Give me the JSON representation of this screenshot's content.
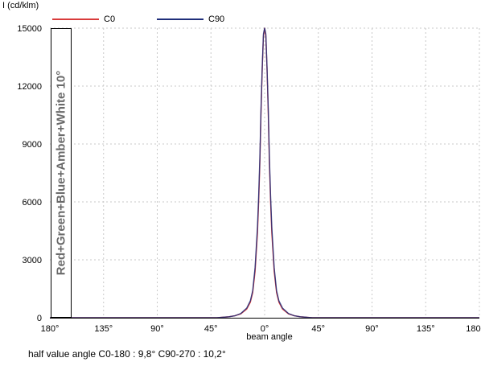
{
  "chart_data": {
    "type": "line",
    "ylabel": "I (cd/klm)",
    "xlabel": "beam angle",
    "ylim": [
      0,
      15000
    ],
    "yticks": [
      0,
      3000,
      6000,
      9000,
      12000,
      15000
    ],
    "xlim": [
      -180,
      180
    ],
    "xtick_values": [
      -180,
      -135,
      -90,
      -45,
      0,
      45,
      90,
      135,
      180
    ],
    "xtick_labels": [
      "180°",
      "135°",
      "90°",
      "45°",
      "0°",
      "45°",
      "90°",
      "135°",
      "180°"
    ],
    "grid": true,
    "legend_position": "top",
    "series": [
      {
        "name": "C0",
        "color": "#d93b3b",
        "x": [
          -180,
          -40,
          -30,
          -25,
          -20,
          -15,
          -12,
          -10,
          -8,
          -6,
          -5,
          -4,
          -3,
          -2,
          -1,
          0,
          1,
          2,
          3,
          4,
          5,
          6,
          8,
          10,
          12,
          15,
          20,
          25,
          30,
          40,
          180
        ],
        "y": [
          0,
          0,
          50,
          100,
          200,
          450,
          800,
          1300,
          2400,
          4400,
          6000,
          8000,
          10700,
          12900,
          14600,
          15000,
          14600,
          12900,
          10700,
          8000,
          6000,
          4400,
          2400,
          1300,
          800,
          450,
          200,
          100,
          50,
          0,
          0
        ]
      },
      {
        "name": "C90",
        "color": "#1f2e7a",
        "x": [
          -180,
          -40,
          -30,
          -25,
          -20,
          -15,
          -12,
          -10,
          -8,
          -6,
          -5,
          -4,
          -3,
          -2,
          -1,
          0,
          1,
          2,
          3,
          4,
          5,
          6,
          8,
          10,
          12,
          15,
          20,
          25,
          30,
          40,
          180
        ],
        "y": [
          0,
          0,
          50,
          100,
          220,
          500,
          870,
          1400,
          2600,
          4700,
          6300,
          8300,
          10900,
          13000,
          14700,
          15000,
          14700,
          13000,
          10900,
          8300,
          6300,
          4700,
          2600,
          1400,
          870,
          500,
          220,
          100,
          50,
          0,
          0
        ]
      }
    ]
  },
  "side_label": "Red+Green+Blue+Amber+White 10°",
  "footer": "half value angle C0-180 : 9,8° C90-270 : 10,2°"
}
